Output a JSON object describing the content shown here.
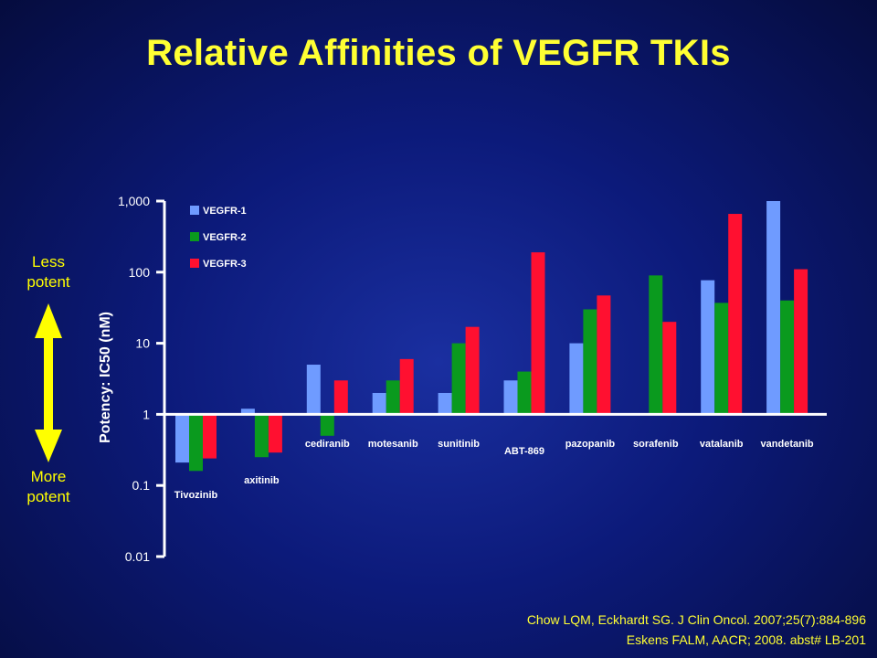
{
  "title": "Relative Affinities of VEGFR TKIs",
  "side_labels": {
    "top_line1": "Less",
    "top_line2": "potent",
    "bottom_line1": "More",
    "bottom_line2": "potent"
  },
  "citations": [
    "Chow LQM, Eckhardt SG. J Clin Oncol. 2007;25(7):884-896",
    "Eskens FALM,  AACR; 2008. abst# LB-201"
  ],
  "colors": {
    "title": "#ffff33",
    "axis": "#ffffff",
    "arrow": "#ffff00",
    "VEGFR-1": "#6f9bff",
    "VEGFR-2": "#0a9a1e",
    "VEGFR-3": "#ff1030"
  },
  "chart_data": {
    "type": "bar",
    "ylabel": "Potency: IC50 (nM)",
    "yscale": "log",
    "ylim": [
      0.01,
      1000
    ],
    "baseline": 1,
    "yticks": [
      1000,
      100,
      10,
      1,
      0.1,
      0.01
    ],
    "yticklabels": [
      "1,000",
      "100",
      "10",
      "1",
      "0.1",
      "0.01"
    ],
    "legend_position": "top-left",
    "categories": [
      "Tivozinib",
      "axitinib",
      "cediranib",
      "motesanib",
      "sunitinib",
      "ABT-869",
      "pazopanib",
      "sorafenib",
      "vatalanib",
      "vandetanib"
    ],
    "series": [
      {
        "name": "VEGFR-1",
        "values": [
          0.21,
          1.2,
          5,
          2,
          2,
          3,
          10,
          null,
          77,
          1000
        ]
      },
      {
        "name": "VEGFR-2",
        "values": [
          0.16,
          0.25,
          0.5,
          3,
          10,
          4,
          30,
          90,
          37,
          40
        ]
      },
      {
        "name": "VEGFR-3",
        "values": [
          0.24,
          0.29,
          3,
          6,
          17,
          190,
          47,
          20,
          660,
          110
        ]
      }
    ]
  }
}
